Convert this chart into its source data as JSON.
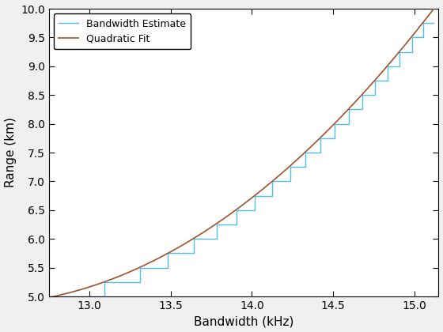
{
  "xlabel": "Bandwidth (kHz)",
  "ylabel": "Range (km)",
  "xlim": [
    12.75,
    15.15
  ],
  "ylim": [
    5,
    10
  ],
  "xticks": [
    13,
    13.5,
    14,
    14.5,
    15
  ],
  "yticks": [
    5,
    5.5,
    6,
    6.5,
    7,
    7.5,
    8,
    8.5,
    9,
    9.5,
    10
  ],
  "legend_labels": [
    "Bandwidth Estimate",
    "Quadratic Fit"
  ],
  "line_colors": [
    "#4DBEEE",
    "#A0522D"
  ],
  "background_color": "#f0f0f0",
  "ax_background": "#ffffff",
  "xlabel_fontsize": 11,
  "ylabel_fontsize": 11,
  "tick_fontsize": 10,
  "legend_fontsize": 9,
  "pt1": [
    12.78,
    5.0
  ],
  "pt2": [
    13.9,
    6.5
  ],
  "pt3": [
    15.12,
    10.0
  ]
}
